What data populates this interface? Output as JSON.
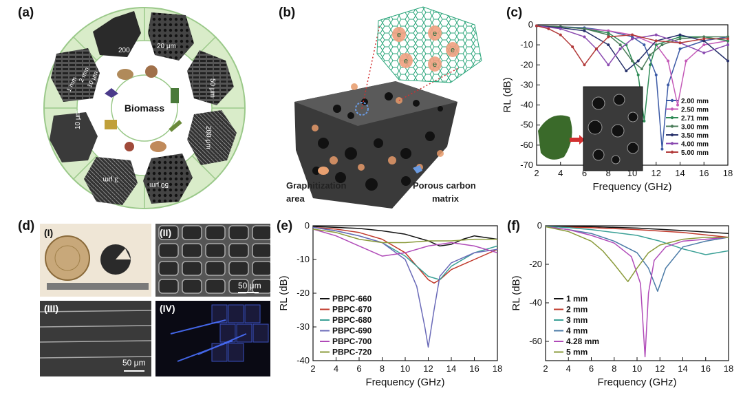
{
  "panels": {
    "a": {
      "label": "(a)",
      "center": "Biomass",
      "scales": [
        "200 μm",
        "20 μm",
        "50 μm",
        "200 μm",
        "50 μm",
        "3 μm",
        "10 μm",
        "2 mm",
        "1 mm",
        "10 μm"
      ]
    },
    "b": {
      "label": "(b)",
      "legend1": [
        "Graphitization",
        "area"
      ],
      "legend2": [
        "Porous carbon",
        "matrix"
      ],
      "electron": "e"
    },
    "c": {
      "label": "(c)"
    },
    "d": {
      "label": "(d)",
      "sub": [
        "(I)",
        "(II)",
        "(III)",
        "(IV)"
      ],
      "scale_ii": "50 μm",
      "scale_iii": "50 μm"
    },
    "e": {
      "label": "(e)"
    },
    "f": {
      "label": "(f)"
    }
  },
  "chart_data": [
    {
      "id": "c",
      "type": "line",
      "xlabel": "Frequency (GHz)",
      "ylabel": "RL (dB)",
      "xlim": [
        2,
        18
      ],
      "ylim": [
        -70,
        0
      ],
      "xticks": [
        2,
        4,
        6,
        8,
        10,
        12,
        14,
        16,
        18
      ],
      "yticks": [
        0,
        -10,
        -20,
        -30,
        -40,
        -50,
        -60,
        -70
      ],
      "legend_position": "bottom-right",
      "series": [
        {
          "name": "2.00 mm",
          "color": "#3c5aa6",
          "x": [
            2,
            4,
            6,
            8,
            10,
            11,
            12,
            12.5,
            13,
            14,
            16,
            18
          ],
          "y": [
            -0.5,
            -1,
            -1.5,
            -3,
            -6,
            -10,
            -25,
            -62,
            -30,
            -12,
            -8,
            -6
          ]
        },
        {
          "name": "2.50 mm",
          "color": "#c45ab8",
          "x": [
            2,
            4,
            6,
            8,
            10,
            12,
            13,
            13.8,
            14.5,
            16,
            18
          ],
          "y": [
            -0.5,
            -1,
            -2,
            -3,
            -5,
            -10,
            -18,
            -40,
            -18,
            -10,
            -8
          ]
        },
        {
          "name": "2.71 mm",
          "color": "#2e8b57",
          "x": [
            2,
            4,
            6,
            8,
            9.5,
            10.5,
            11,
            11.5,
            12,
            14,
            16,
            18
          ],
          "y": [
            -0.5,
            -1,
            -2,
            -4,
            -10,
            -25,
            -48,
            -20,
            -10,
            -6,
            -6,
            -8
          ]
        },
        {
          "name": "3.00 mm",
          "color": "#4a7c59",
          "x": [
            2,
            4,
            6,
            8,
            9,
            10,
            10.8,
            11.5,
            12.5,
            14,
            16,
            18
          ],
          "y": [
            -0.5,
            -1,
            -2,
            -5,
            -10,
            -18,
            -22,
            -15,
            -10,
            -7,
            -6,
            -6
          ]
        },
        {
          "name": "3.50 mm",
          "color": "#26306a",
          "x": [
            2,
            4,
            6,
            8,
            9.5,
            10.5,
            12,
            14,
            16,
            18
          ],
          "y": [
            -0.5,
            -1.5,
            -3,
            -10,
            -23,
            -18,
            -8,
            -5,
            -8,
            -18
          ]
        },
        {
          "name": "4.00 mm",
          "color": "#8a4ab0",
          "x": [
            2,
            4,
            6,
            7,
            8,
            9,
            10,
            12,
            14,
            16,
            18
          ],
          "y": [
            -0.5,
            -2,
            -6,
            -12,
            -20,
            -12,
            -7,
            -5,
            -9,
            -14,
            -10
          ]
        },
        {
          "name": "5.00 mm",
          "color": "#b23a3a",
          "x": [
            2,
            3,
            4,
            5,
            6,
            7,
            8,
            10,
            12,
            14,
            16,
            18
          ],
          "y": [
            -0.5,
            -2,
            -5,
            -11,
            -20,
            -12,
            -6,
            -5,
            -8,
            -9,
            -7,
            -7
          ]
        }
      ]
    },
    {
      "id": "e",
      "type": "line",
      "xlabel": "Frequency (GHz)",
      "ylabel": "RL (dB)",
      "xlim": [
        2,
        18
      ],
      "ylim": [
        -40,
        0
      ],
      "xticks": [
        2,
        4,
        6,
        8,
        10,
        12,
        14,
        16,
        18
      ],
      "yticks": [
        0,
        -10,
        -20,
        -30,
        -40
      ],
      "legend_position": "bottom-left",
      "series": [
        {
          "name": "PBPC-660",
          "color": "#111111",
          "x": [
            2,
            4,
            6,
            8,
            10,
            12,
            13,
            14,
            15,
            16,
            18
          ],
          "y": [
            -0.2,
            -0.5,
            -0.8,
            -1.5,
            -2.5,
            -4.5,
            -6,
            -5.5,
            -4,
            -3,
            -4
          ]
        },
        {
          "name": "PBPC-670",
          "color": "#c0392b",
          "x": [
            2,
            4,
            6,
            8,
            10,
            11,
            12,
            12.5,
            13,
            14,
            16,
            18
          ],
          "y": [
            -0.5,
            -1,
            -2,
            -4,
            -8,
            -12,
            -16,
            -17,
            -16,
            -13,
            -10,
            -7
          ]
        },
        {
          "name": "PBPC-680",
          "color": "#3aa096",
          "x": [
            2,
            4,
            6,
            8,
            10,
            11,
            12,
            13,
            14,
            16,
            18
          ],
          "y": [
            -0.5,
            -1.5,
            -3,
            -5,
            -9,
            -12,
            -15,
            -16,
            -12,
            -8,
            -6
          ]
        },
        {
          "name": "PBPC-690",
          "color": "#6a6ab8",
          "x": [
            2,
            4,
            6,
            8,
            10,
            11,
            11.7,
            12,
            12.5,
            13,
            14,
            16,
            18
          ],
          "y": [
            -0.5,
            -1.5,
            -3,
            -5,
            -10,
            -18,
            -30,
            -36,
            -25,
            -15,
            -11,
            -8,
            -7
          ]
        },
        {
          "name": "PBPC-700",
          "color": "#b04ab8",
          "x": [
            2,
            4,
            6,
            8,
            10,
            12,
            14,
            16,
            18
          ],
          "y": [
            -1,
            -3,
            -6,
            -9,
            -8,
            -6,
            -5,
            -6,
            -8
          ]
        },
        {
          "name": "PBPC-720",
          "color": "#8a9a3a",
          "x": [
            2,
            4,
            6,
            8,
            10,
            12,
            14,
            16,
            18
          ],
          "y": [
            -1,
            -2,
            -4,
            -5,
            -5,
            -4.5,
            -4.5,
            -4,
            -4
          ]
        }
      ]
    },
    {
      "id": "f",
      "type": "line",
      "xlabel": "Frequency (GHz)",
      "ylabel": "RL (dB)",
      "xlim": [
        2,
        18
      ],
      "ylim": [
        -70,
        0
      ],
      "xticks": [
        2,
        4,
        6,
        8,
        10,
        12,
        14,
        16,
        18
      ],
      "yticks": [
        0,
        -20,
        -40,
        -60
      ],
      "legend_position": "bottom-left",
      "series": [
        {
          "name": "1 mm",
          "color": "#111111",
          "x": [
            2,
            6,
            10,
            14,
            18
          ],
          "y": [
            -0.2,
            -0.5,
            -1.2,
            -2.5,
            -4
          ]
        },
        {
          "name": "2 mm",
          "color": "#c0392b",
          "x": [
            2,
            6,
            10,
            14,
            18
          ],
          "y": [
            -0.5,
            -1,
            -2,
            -3.5,
            -6
          ]
        },
        {
          "name": "3 mm",
          "color": "#3aa096",
          "x": [
            2,
            4,
            6,
            8,
            10,
            12,
            14,
            16,
            18
          ],
          "y": [
            -0.3,
            -1,
            -2,
            -3.5,
            -5,
            -8,
            -12,
            -15,
            -13
          ]
        },
        {
          "name": "4 mm",
          "color": "#4a7aa6",
          "x": [
            2,
            4,
            6,
            8,
            10,
            11,
            11.8,
            12.5,
            14,
            16,
            18
          ],
          "y": [
            -0.5,
            -2,
            -4,
            -8,
            -14,
            -22,
            -34,
            -22,
            -11,
            -8,
            -6
          ]
        },
        {
          "name": "4.28 mm",
          "color": "#b04ab8",
          "x": [
            2,
            4,
            6,
            8,
            9.5,
            10.3,
            10.7,
            11,
            11.5,
            12.5,
            14,
            16,
            18
          ],
          "y": [
            -0.5,
            -2,
            -5,
            -9,
            -16,
            -30,
            -68,
            -35,
            -18,
            -11,
            -8,
            -7,
            -6
          ]
        },
        {
          "name": "5 mm",
          "color": "#8a9a3a",
          "x": [
            2,
            4,
            6,
            7,
            8,
            9.2,
            10,
            11,
            12,
            14,
            16,
            18
          ],
          "y": [
            -0.5,
            -3,
            -8,
            -13,
            -20,
            -29,
            -22,
            -14,
            -10,
            -7,
            -6,
            -6
          ]
        }
      ]
    }
  ]
}
